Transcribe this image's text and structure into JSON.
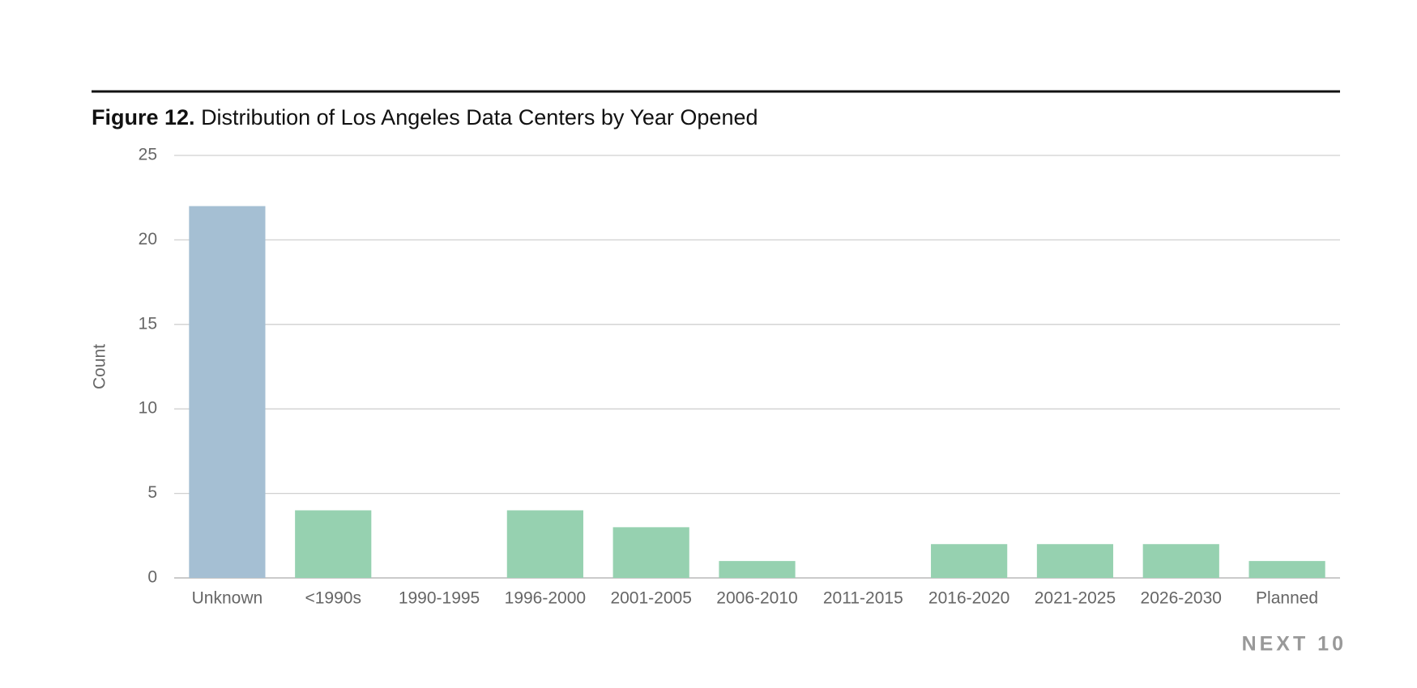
{
  "chart_data": {
    "type": "bar",
    "figure_label": "Figure 12.",
    "title": "Distribution of Los Angeles Data Centers by Year Opened",
    "y_label": "Count",
    "categories": [
      "Unknown",
      "<1990s",
      "1990-1995",
      "1996-2000",
      "2001-2005",
      "2006-2010",
      "2011-2015",
      "2016-2020",
      "2021-2025",
      "2026-2030",
      "Planned"
    ],
    "values": [
      22,
      4,
      0,
      4,
      3,
      1,
      0,
      2,
      2,
      2,
      1
    ],
    "colors": [
      "#a5bfd3",
      "#96d1b0",
      "#96d1b0",
      "#96d1b0",
      "#96d1b0",
      "#96d1b0",
      "#96d1b0",
      "#96d1b0",
      "#96d1b0",
      "#96d1b0",
      "#96d1b0"
    ],
    "ylim": [
      0,
      25
    ],
    "yticks": [
      0,
      5,
      10,
      15,
      20,
      25
    ],
    "grid": true
  },
  "brand": "NEXT 10"
}
